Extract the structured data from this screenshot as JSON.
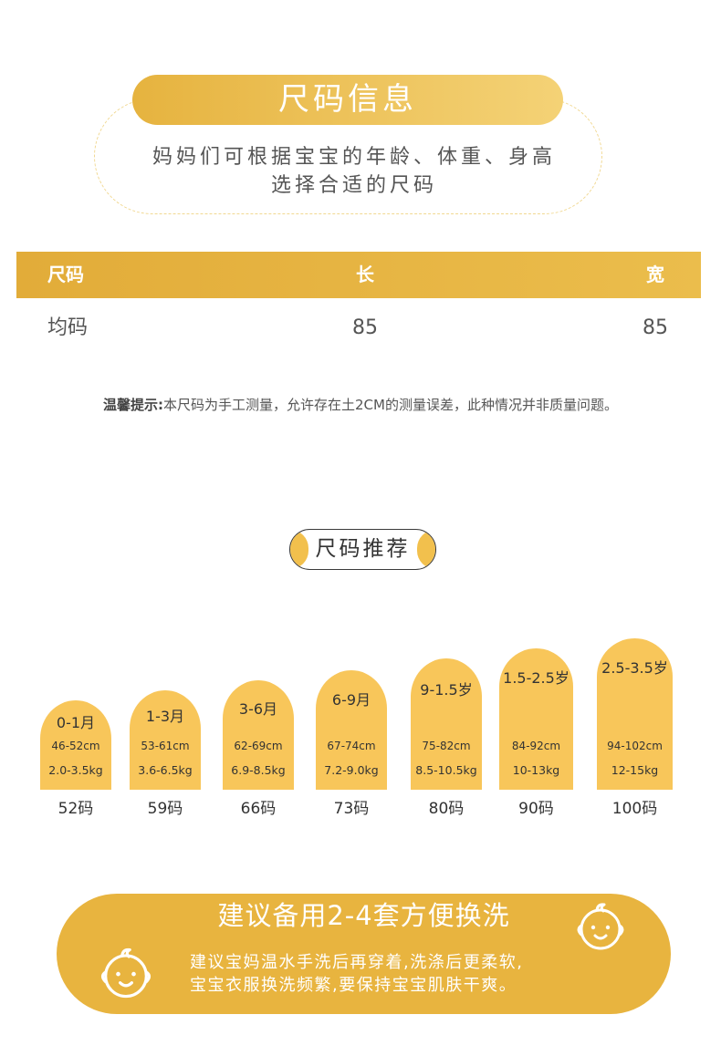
{
  "header": {
    "title": "尺码信息",
    "subtitle_lines": [
      "妈妈们可根据宝宝的年龄、体重、身高",
      "选择合适的尺码"
    ]
  },
  "size_table": {
    "columns": [
      "尺码",
      "长",
      "宽"
    ],
    "rows": [
      [
        "均码",
        "85",
        "85"
      ]
    ]
  },
  "note": {
    "label": "温馨提示:",
    "text": "本尺码为手工测量，允许存在土2CM的测量误差，此种情况并非质量问题。"
  },
  "recommend": {
    "title": "尺码推荐",
    "items": [
      {
        "age": "0-1月",
        "height": "46-52cm",
        "weight": "2.0-3.5kg",
        "size": "52码"
      },
      {
        "age": "1-3月",
        "height": "53-61cm",
        "weight": "3.6-6.5kg",
        "size": "59码"
      },
      {
        "age": "3-6月",
        "height": "62-69cm",
        "weight": "6.9-8.5kg",
        "size": "66码"
      },
      {
        "age": "6-9月",
        "height": "67-74cm",
        "weight": "7.2-9.0kg",
        "size": "73码"
      },
      {
        "age": "9-1.5岁",
        "height": "75-82cm",
        "weight": "8.5-10.5kg",
        "size": "80码"
      },
      {
        "age": "1.5-2.5岁",
        "height": "84-92cm",
        "weight": "10-13kg",
        "size": "90码"
      },
      {
        "age": "2.5-3.5岁",
        "height": "94-102cm",
        "weight": "12-15kg",
        "size": "100码"
      }
    ]
  },
  "wash_banner": {
    "title": "建议备用2-4套方便换洗",
    "lines": [
      "建议宝妈温水手洗后再穿着,洗涤后更柔软,",
      "宝宝衣服换洗频繁,要保持宝宝肌肤干爽。"
    ],
    "icons": {
      "top_right": "baby-face-icon",
      "bottom_left": "baby-face-icon"
    }
  },
  "colors": {
    "accent": "#e6b33f",
    "accent_light": "#f4d276",
    "bar": "#f8c65a",
    "banner": "#e8b43f",
    "text_dark": "#333333",
    "text_gray": "#555555"
  }
}
